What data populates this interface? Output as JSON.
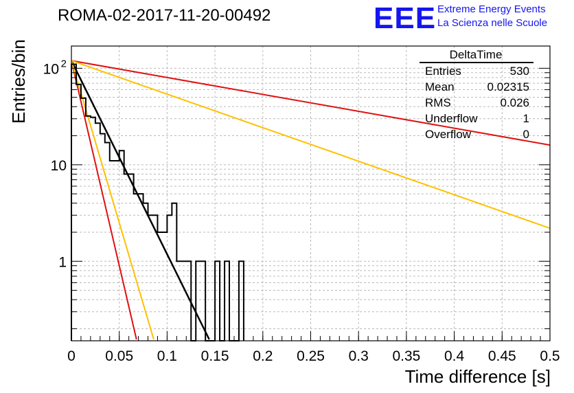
{
  "header": {
    "title": "ROMA-02-2017-11-20-00492",
    "logo_text": "EEE",
    "logo_line1": "Extreme Energy Events",
    "logo_line2": "La Scienza nelle Scuole",
    "logo_color": "#1515f0"
  },
  "stats_box": {
    "title": "DeltaTime",
    "rows": [
      {
        "label": "Entries",
        "value": "530"
      },
      {
        "label": "Mean",
        "value": "0.02315"
      },
      {
        "label": "RMS",
        "value": "0.026"
      },
      {
        "label": "Underflow",
        "value": "1"
      },
      {
        "label": "Overflow",
        "value": "0"
      }
    ]
  },
  "chart_data": {
    "type": "histogram",
    "xlabel": "Time difference [s]",
    "ylabel": "Entries/bin",
    "xlim": [
      0,
      0.5
    ],
    "ylim": [
      0.15,
      170
    ],
    "yscale": "log",
    "grid": true,
    "x_ticks": [
      "0",
      "0.05",
      "0.1",
      "0.15",
      "0.2",
      "0.25",
      "0.3",
      "0.35",
      "0.4",
      "0.45",
      "0.5"
    ],
    "y_ticks": [
      "1",
      "10",
      "10^2"
    ],
    "bin_width": 0.005,
    "histogram_counts": [
      110,
      68,
      49,
      32,
      31,
      27,
      21,
      17,
      11,
      11,
      14,
      8,
      8,
      5,
      5,
      4,
      3,
      3,
      2,
      2,
      3,
      4,
      1,
      1,
      1,
      0,
      1,
      1,
      0,
      0,
      1,
      0,
      1,
      0,
      0,
      1
    ],
    "fit_lines": [
      {
        "color": "#000000",
        "x": [
          0,
          0.144
        ],
        "y": [
          120,
          0.155
        ]
      },
      {
        "color": "#e01010",
        "x": [
          0,
          0.068
        ],
        "y": [
          120,
          0.155
        ]
      },
      {
        "color": "#ffc000",
        "x": [
          0,
          0.086
        ],
        "y": [
          120,
          0.155
        ]
      },
      {
        "color": "#e01010",
        "x": [
          0,
          0.5
        ],
        "y": [
          120,
          16
        ]
      },
      {
        "color": "#ffc000",
        "x": [
          0,
          0.5
        ],
        "y": [
          120,
          2.2
        ]
      }
    ],
    "colors": {
      "histogram": "#000000",
      "grid": "#b8b8b8"
    }
  }
}
